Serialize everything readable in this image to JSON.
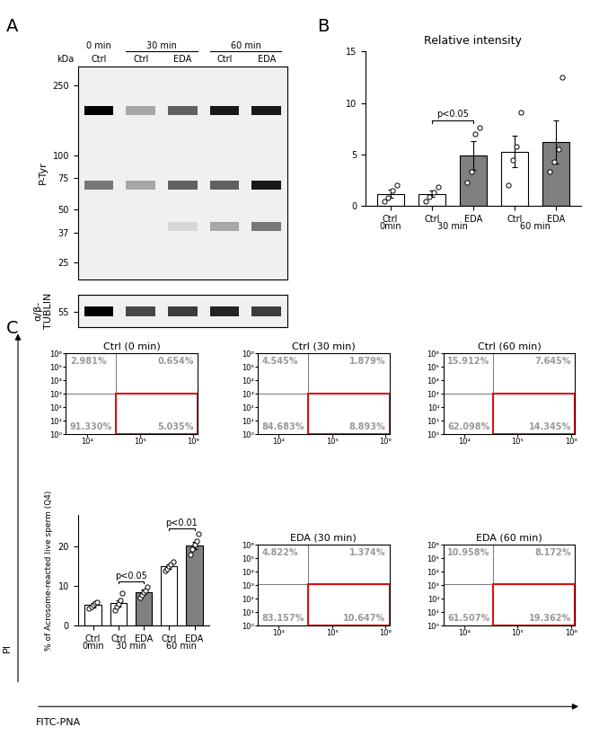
{
  "panel_labels": [
    "A",
    "B",
    "C"
  ],
  "axis_labels": {
    "y": "PI",
    "x": "FITC-PNA"
  },
  "blot": {
    "lanes": [
      "Ctrl",
      "Ctrl",
      "EDA",
      "Ctrl",
      "EDA"
    ],
    "groups": [
      {
        "label": "0 min",
        "lanes": [
          0
        ]
      },
      {
        "label": "30 min",
        "lanes": [
          1,
          2
        ]
      },
      {
        "label": "60 min",
        "lanes": [
          3,
          4
        ]
      }
    ],
    "unit_label": "kDa",
    "ptyr": {
      "label": "P-Tyr",
      "log": true,
      "ylim": [
        20,
        320
      ],
      "yticks": [
        250,
        100,
        75,
        50,
        37,
        25
      ],
      "bands": [
        {
          "kDa": 180,
          "intensity": [
            1.0,
            0.3,
            0.6,
            0.9,
            0.9
          ]
        },
        {
          "kDa": 68,
          "intensity": [
            0.5,
            0.3,
            0.6,
            0.6,
            0.9
          ]
        },
        {
          "kDa": 40,
          "intensity": [
            0.0,
            0.0,
            0.1,
            0.3,
            0.5
          ]
        }
      ]
    },
    "tubulin": {
      "label": "α/β-\nTUBLIN",
      "ylim": [
        45,
        66
      ],
      "yticks": [
        55
      ],
      "bands": [
        {
          "kDa": 55,
          "intensity": [
            1.0,
            0.7,
            0.75,
            0.85,
            0.75
          ]
        }
      ]
    }
  },
  "chart_data": [
    {
      "type": "bar",
      "title": "Relative intensity",
      "categories": [
        "Ctrl",
        "Ctrl",
        "EDA",
        "Ctrl",
        "EDA"
      ],
      "groups": [
        {
          "label": "0min",
          "lanes": [
            0
          ]
        },
        {
          "label": "30 min",
          "lanes": [
            1,
            2
          ]
        },
        {
          "label": "60 min",
          "lanes": [
            3,
            4
          ]
        }
      ],
      "values": [
        1.2,
        1.2,
        4.9,
        5.3,
        6.2
      ],
      "errors": [
        0.4,
        0.3,
        1.4,
        1.5,
        2.1
      ],
      "points": [
        [
          0.5,
          0.8,
          1.5,
          2.0
        ],
        [
          0.5,
          0.9,
          1.3,
          1.9
        ],
        [
          2.3,
          3.3,
          7.0,
          7.6
        ],
        [
          2.0,
          4.5,
          5.8,
          9.1
        ],
        [
          3.3,
          4.3,
          5.5,
          12.5
        ]
      ],
      "colors": [
        "#ffffff",
        "#ffffff",
        "#808080",
        "#ffffff",
        "#808080"
      ],
      "ylim": [
        0,
        15
      ],
      "yticks": [
        0,
        5,
        10,
        15
      ],
      "annotations": [
        {
          "text": "p<0.05",
          "from": 1,
          "to": 2
        }
      ]
    },
    {
      "type": "bar",
      "ylabel": "% of Acrosome-reacted live sperm (Q4)",
      "categories": [
        "Ctrl",
        "Ctrl",
        "EDA",
        "Ctrl",
        "EDA"
      ],
      "groups": [
        {
          "label": "0min",
          "lanes": [
            0
          ]
        },
        {
          "label": "30 min",
          "lanes": [
            1,
            2
          ]
        },
        {
          "label": "60 min",
          "lanes": [
            3,
            4
          ]
        }
      ],
      "values": [
        5.2,
        5.7,
        8.5,
        15.0,
        20.3
      ],
      "errors": [
        0.5,
        0.8,
        0.6,
        0.5,
        1.0
      ],
      "points": [
        [
          4.3,
          4.8,
          5.2,
          5.8,
          6.0
        ],
        [
          4.0,
          4.8,
          5.5,
          6.5,
          8.2
        ],
        [
          7.0,
          7.8,
          8.5,
          9.0,
          9.8
        ],
        [
          14.0,
          14.5,
          15.0,
          15.5,
          16.3
        ],
        [
          18.0,
          19.5,
          20.5,
          21.5,
          23.3
        ]
      ],
      "colors": [
        "#ffffff",
        "#ffffff",
        "#808080",
        "#ffffff",
        "#808080"
      ],
      "ylim": [
        0,
        28
      ],
      "yticks": [
        0,
        10,
        20
      ],
      "annotations": [
        {
          "text": "p<0.05",
          "from": 1,
          "to": 2
        },
        {
          "text": "p<0.01",
          "from": 3,
          "to": 4
        }
      ]
    },
    {
      "type": "density",
      "title": "Ctrl (0 min)",
      "log": true,
      "xlim": [
        4000,
        1200000
      ],
      "ylim": [
        1,
        1000000
      ],
      "xticks": [
        {
          "value": 10000,
          "label": "10⁴"
        },
        {
          "value": 100000,
          "label": "10⁵"
        },
        {
          "value": 1000000,
          "label": "10⁶"
        }
      ],
      "yticks": [
        {
          "value": 1,
          "label": "10⁰"
        },
        {
          "value": 10,
          "label": "10¹"
        },
        {
          "value": 100,
          "label": "10²"
        },
        {
          "value": 1000,
          "label": "10³"
        },
        {
          "value": 10000,
          "label": "10⁴"
        },
        {
          "value": 100000,
          "label": "10⁵"
        },
        {
          "value": 1000000,
          "label": "10⁶"
        }
      ],
      "x_gate": 35000,
      "y_gate": 1100,
      "quadrants": {
        "values": [
          2.981,
          0.654,
          91.33,
          5.035
        ],
        "value_labels": [
          "2.981%",
          "0.654%",
          "91.330%",
          "5.035%"
        ]
      }
    },
    {
      "type": "density",
      "title": "Ctrl (30 min)",
      "log": true,
      "xlim": [
        4000,
        1200000
      ],
      "ylim": [
        1,
        1000000
      ],
      "xticks": [
        {
          "value": 10000,
          "label": "10⁴"
        },
        {
          "value": 100000,
          "label": "10⁵"
        },
        {
          "value": 1000000,
          "label": "10⁶"
        }
      ],
      "yticks": [
        {
          "value": 1,
          "label": "10⁰"
        },
        {
          "value": 10,
          "label": "10¹"
        },
        {
          "value": 100,
          "label": "10²"
        },
        {
          "value": 1000,
          "label": "10³"
        },
        {
          "value": 10000,
          "label": "10⁴"
        },
        {
          "value": 100000,
          "label": "10⁵"
        },
        {
          "value": 1000000,
          "label": "10⁶"
        }
      ],
      "x_gate": 35000,
      "y_gate": 1100,
      "quadrants": {
        "values": [
          4.545,
          1.879,
          84.683,
          8.893
        ],
        "value_labels": [
          "4.545%",
          "1.879%",
          "84.683%",
          "8.893%"
        ]
      }
    },
    {
      "type": "density",
      "title": "Ctrl (60 min)",
      "log": true,
      "xlim": [
        4000,
        1200000
      ],
      "ylim": [
        1,
        1000000
      ],
      "xticks": [
        {
          "value": 10000,
          "label": "10⁴"
        },
        {
          "value": 100000,
          "label": "10⁵"
        },
        {
          "value": 1000000,
          "label": "10⁶"
        }
      ],
      "yticks": [
        {
          "value": 1,
          "label": "10⁰"
        },
        {
          "value": 10,
          "label": "10¹"
        },
        {
          "value": 100,
          "label": "10²"
        },
        {
          "value": 1000,
          "label": "10³"
        },
        {
          "value": 10000,
          "label": "10⁴"
        },
        {
          "value": 100000,
          "label": "10⁵"
        },
        {
          "value": 1000000,
          "label": "10⁶"
        }
      ],
      "x_gate": 35000,
      "y_gate": 1100,
      "quadrants": {
        "values": [
          15.912,
          7.645,
          62.098,
          14.345
        ],
        "value_labels": [
          "15.912%",
          "7.645%",
          "62.098%",
          "14.345%"
        ]
      }
    },
    {
      "type": "density",
      "title": "EDA (30 min)",
      "log": true,
      "xlim": [
        4000,
        1200000
      ],
      "ylim": [
        1,
        1000000
      ],
      "xticks": [
        {
          "value": 10000,
          "label": "10⁴"
        },
        {
          "value": 100000,
          "label": "10⁵"
        },
        {
          "value": 1000000,
          "label": "10⁶"
        }
      ],
      "yticks": [
        {
          "value": 1,
          "label": "10⁰"
        },
        {
          "value": 10,
          "label": "10¹"
        },
        {
          "value": 100,
          "label": "10²"
        },
        {
          "value": 1000,
          "label": "10³"
        },
        {
          "value": 10000,
          "label": "10⁴"
        },
        {
          "value": 100000,
          "label": "10⁵"
        },
        {
          "value": 1000000,
          "label": "10⁶"
        }
      ],
      "x_gate": 35000,
      "y_gate": 1100,
      "quadrants": {
        "values": [
          4.822,
          1.374,
          83.157,
          10.647
        ],
        "value_labels": [
          "4.822%",
          "1.374%",
          "83.157%",
          "10.647%"
        ]
      }
    },
    {
      "type": "density",
      "title": "EDA (60 min)",
      "log": true,
      "xlim": [
        4000,
        1200000
      ],
      "ylim": [
        1,
        1000000
      ],
      "xticks": [
        {
          "value": 10000,
          "label": "10⁴"
        },
        {
          "value": 100000,
          "label": "10⁵"
        },
        {
          "value": 1000000,
          "label": "10⁶"
        }
      ],
      "yticks": [
        {
          "value": 1,
          "label": "10⁰"
        },
        {
          "value": 10,
          "label": "10¹"
        },
        {
          "value": 100,
          "label": "10²"
        },
        {
          "value": 1000,
          "label": "10³"
        },
        {
          "value": 10000,
          "label": "10⁴"
        },
        {
          "value": 100000,
          "label": "10⁵"
        },
        {
          "value": 1000000,
          "label": "10⁶"
        }
      ],
      "x_gate": 35000,
      "y_gate": 1100,
      "quadrants": {
        "values": [
          10.958,
          8.172,
          61.507,
          19.362
        ],
        "value_labels": [
          "10.958%",
          "8.172%",
          "61.507%",
          "19.362%"
        ]
      }
    }
  ]
}
